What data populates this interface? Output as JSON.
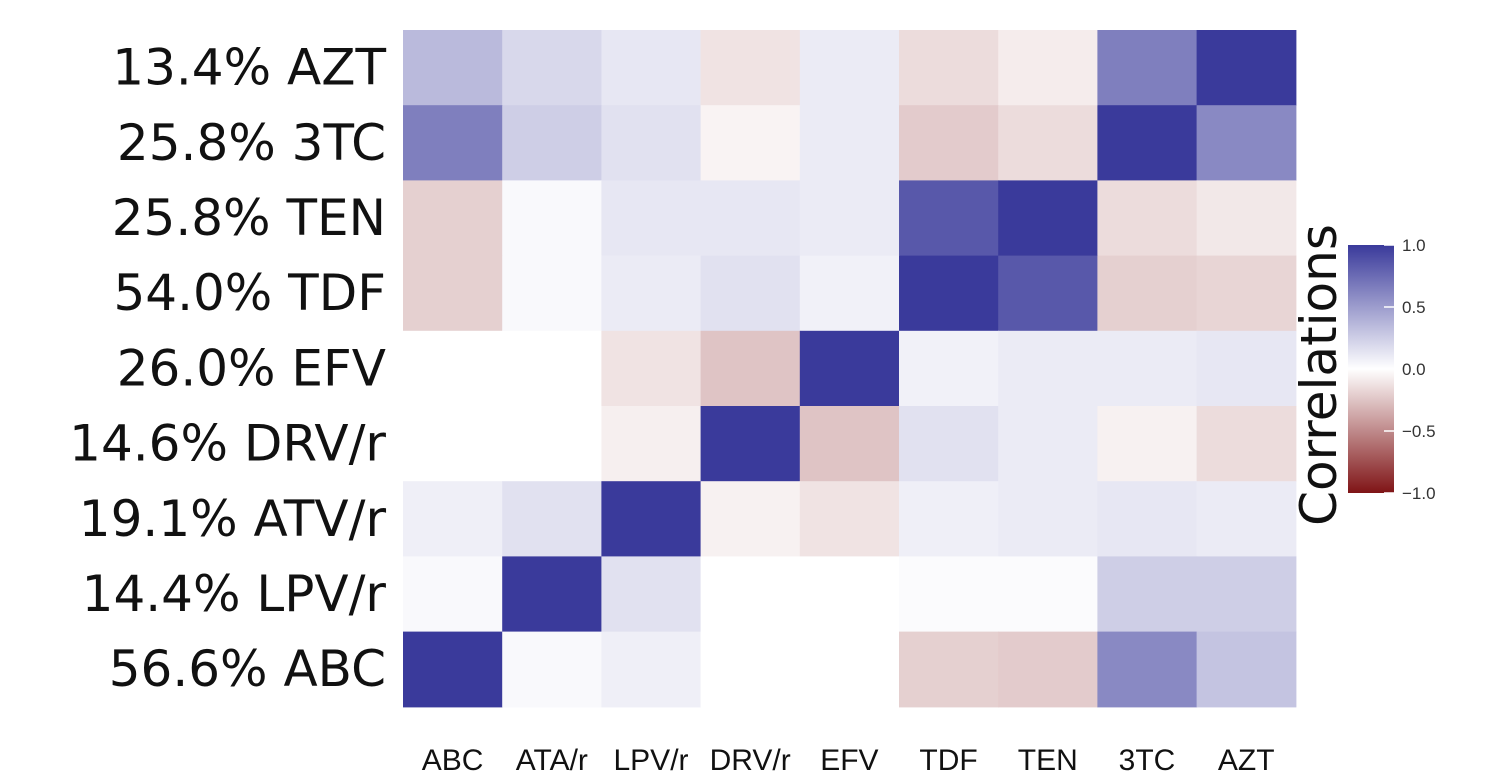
{
  "chart_data": {
    "type": "heatmap",
    "title": "",
    "xlabel": "",
    "ylabel": "",
    "rows": [
      "13.4% AZT",
      "25.8% 3TC",
      "25.8% TEN",
      "54.0% TDF",
      "26.0% EFV",
      "14.6% DRV/r",
      "19.1% ATV/r",
      "14.4% LPV/r",
      "56.6% ABC"
    ],
    "columns": [
      "ABC",
      "ATA/r",
      "LPV/r",
      "DRV/r",
      "EFV",
      "TDF",
      "TEN",
      "3TC",
      "AZT"
    ],
    "values": [
      [
        0.35,
        0.2,
        0.12,
        -0.12,
        0.1,
        -0.15,
        -0.08,
        0.65,
        1.0
      ],
      [
        0.65,
        0.25,
        0.15,
        -0.05,
        0.1,
        -0.22,
        -0.15,
        1.0,
        0.6
      ],
      [
        -0.2,
        0.03,
        0.12,
        0.12,
        0.1,
        0.85,
        1.0,
        -0.15,
        -0.1
      ],
      [
        -0.2,
        0.03,
        0.1,
        0.15,
        0.07,
        1.0,
        0.85,
        -0.2,
        -0.18
      ],
      [
        0.0,
        0.0,
        -0.12,
        -0.25,
        1.0,
        0.07,
        0.1,
        0.1,
        0.12
      ],
      [
        0.0,
        0.0,
        -0.07,
        1.0,
        -0.25,
        0.15,
        0.1,
        -0.06,
        -0.15
      ],
      [
        0.08,
        0.15,
        1.0,
        -0.06,
        -0.12,
        0.08,
        0.1,
        0.12,
        0.1
      ],
      [
        0.03,
        1.0,
        0.15,
        0.0,
        0.0,
        0.02,
        0.02,
        0.25,
        0.25
      ],
      [
        1.0,
        0.03,
        0.08,
        0.0,
        0.0,
        -0.2,
        -0.22,
        0.6,
        0.3
      ]
    ],
    "zlim": [
      -1,
      1
    ],
    "colorscale": {
      "low": "#7f1416",
      "mid": "#ffffff",
      "high": "#3a3a9b"
    },
    "legend": {
      "title": "Correlations",
      "ticks": [
        "1.0",
        "0.5",
        "0.0",
        "−0.5",
        "−1.0"
      ],
      "tick_values": [
        1.0,
        0.5,
        0.0,
        -0.5,
        -1.0
      ],
      "position": "right"
    }
  }
}
